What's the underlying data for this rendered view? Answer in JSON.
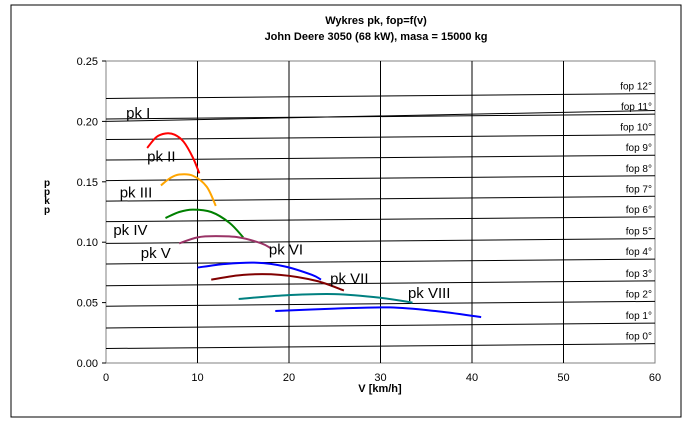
{
  "chart_data": {
    "type": "line",
    "title": "Wykres pk, fop=f(v)",
    "subtitle": "John Deere 3050 (68 kW), masa = 15000 kg",
    "xlabel": "V [km/h]",
    "ylabel_chars": [
      "p",
      "p",
      "k",
      "p"
    ],
    "xlim": [
      0,
      60
    ],
    "ylim": [
      0,
      0.25
    ],
    "x_ticks": [
      "0",
      "10",
      "20",
      "30",
      "40",
      "50",
      "60"
    ],
    "y_ticks": [
      "0.00",
      "0.05",
      "0.10",
      "0.15",
      "0.20",
      "0.25"
    ],
    "grid": true,
    "fop_series": [
      {
        "name": "fop 0°",
        "values": [
          [
            0,
            0.012
          ],
          [
            60,
            0.016
          ]
        ]
      },
      {
        "name": "fop 1°",
        "values": [
          [
            0,
            0.029
          ],
          [
            60,
            0.033
          ]
        ]
      },
      {
        "name": "fop 2°",
        "values": [
          [
            0,
            0.047
          ],
          [
            60,
            0.051
          ]
        ]
      },
      {
        "name": "fop 3°",
        "values": [
          [
            0,
            0.064
          ],
          [
            60,
            0.068
          ]
        ]
      },
      {
        "name": "fop 4°",
        "values": [
          [
            0,
            0.082
          ],
          [
            60,
            0.086
          ]
        ]
      },
      {
        "name": "fop 5°",
        "values": [
          [
            0,
            0.099
          ],
          [
            60,
            0.103
          ]
        ]
      },
      {
        "name": "fop 6°",
        "values": [
          [
            0,
            0.117
          ],
          [
            60,
            0.121
          ]
        ]
      },
      {
        "name": "fop 7°",
        "values": [
          [
            0,
            0.134
          ],
          [
            60,
            0.138
          ]
        ]
      },
      {
        "name": "fop 8°",
        "values": [
          [
            0,
            0.151
          ],
          [
            60,
            0.155
          ]
        ]
      },
      {
        "name": "fop 9°",
        "values": [
          [
            0,
            0.168
          ],
          [
            60,
            0.172
          ]
        ]
      },
      {
        "name": "fop 10°",
        "values": [
          [
            0,
            0.185
          ],
          [
            60,
            0.189
          ]
        ]
      },
      {
        "name": "fop 11°",
        "values": [
          [
            0,
            0.202
          ],
          [
            60,
            0.206
          ]
        ]
      },
      {
        "name": "fop 12°",
        "values": [
          [
            0,
            0.219
          ],
          [
            60,
            0.223
          ]
        ]
      }
    ],
    "pk_series": [
      {
        "name": "pk I",
        "color": "#000000",
        "values": [
          [
            0,
            0.2
          ],
          [
            60,
            0.209
          ]
        ]
      },
      {
        "name": "pk II",
        "color": "#ff0000",
        "values": [
          [
            4.5,
            0.178
          ],
          [
            5.5,
            0.187
          ],
          [
            6.5,
            0.19
          ],
          [
            7.5,
            0.189
          ],
          [
            8.5,
            0.183
          ],
          [
            9.5,
            0.17
          ],
          [
            10.2,
            0.157
          ]
        ]
      },
      {
        "name": "pk III",
        "color": "#ffa500",
        "values": [
          [
            6.0,
            0.147
          ],
          [
            7.0,
            0.153
          ],
          [
            8.0,
            0.156
          ],
          [
            9.5,
            0.155
          ],
          [
            11.0,
            0.146
          ],
          [
            12.0,
            0.13
          ]
        ]
      },
      {
        "name": "pk IV",
        "color": "#008000",
        "values": [
          [
            6.5,
            0.12
          ],
          [
            8.0,
            0.125
          ],
          [
            9.5,
            0.127
          ],
          [
            11.5,
            0.125
          ],
          [
            13.5,
            0.116
          ],
          [
            15.0,
            0.104
          ]
        ]
      },
      {
        "name": "pk V",
        "color": "#993366",
        "values": [
          [
            8.0,
            0.099
          ],
          [
            10.0,
            0.104
          ],
          [
            12.0,
            0.105
          ],
          [
            14.5,
            0.104
          ],
          [
            17.0,
            0.099
          ],
          [
            18.0,
            0.095
          ]
        ]
      },
      {
        "name": "pk VI",
        "color": "#0000ff",
        "values": [
          [
            10.0,
            0.079
          ],
          [
            13.0,
            0.082
          ],
          [
            16.5,
            0.083
          ],
          [
            19.5,
            0.08
          ],
          [
            22.5,
            0.073
          ],
          [
            23.5,
            0.069
          ]
        ]
      },
      {
        "name": "pk VII",
        "color": "#800000",
        "values": [
          [
            11.5,
            0.069
          ],
          [
            15.0,
            0.073
          ],
          [
            19.0,
            0.073
          ],
          [
            23.0,
            0.068
          ],
          [
            26.0,
            0.06
          ]
        ]
      },
      {
        "name": "pk VIII",
        "color": "#008080",
        "values": [
          [
            14.5,
            0.053
          ],
          [
            19.5,
            0.056
          ],
          [
            25.0,
            0.057
          ],
          [
            30.0,
            0.054
          ],
          [
            33.5,
            0.05
          ]
        ]
      },
      {
        "name": "",
        "color": "#0000ff",
        "values": [
          [
            18.5,
            0.043
          ],
          [
            25.0,
            0.045
          ],
          [
            31.0,
            0.046
          ],
          [
            36.0,
            0.043
          ],
          [
            41.0,
            0.038
          ]
        ]
      }
    ]
  }
}
